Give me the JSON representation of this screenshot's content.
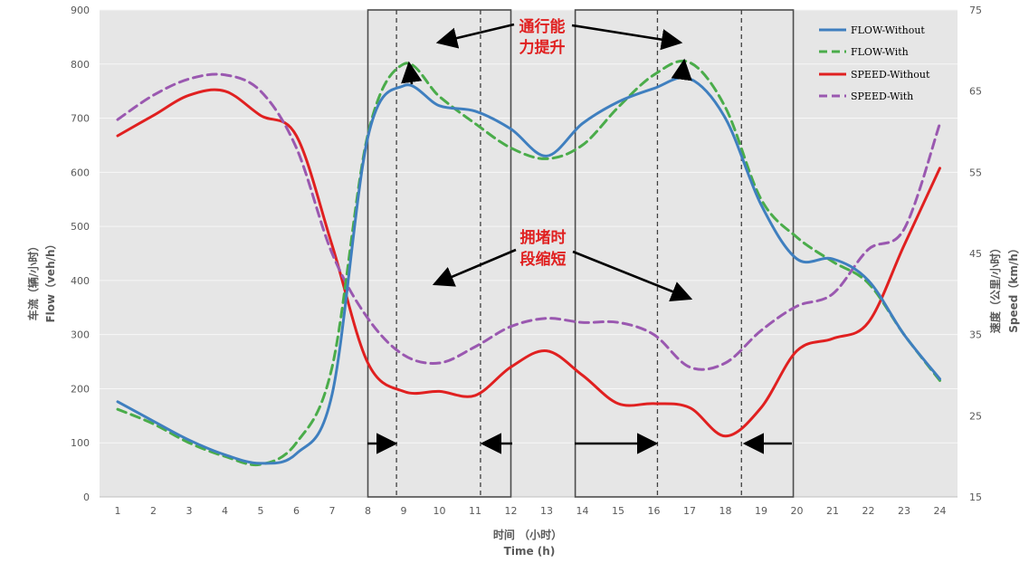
{
  "chart_data": {
    "type": "line",
    "x": [
      1,
      2,
      3,
      4,
      5,
      6,
      7,
      8,
      9,
      10,
      11,
      12,
      13,
      14,
      15,
      16,
      17,
      18,
      19,
      20,
      21,
      22,
      23,
      24
    ],
    "xlabel_cn": "时间 （小时）",
    "xlabel_en": "Time (h)",
    "ylabel_left_cn": "车流（辆/小时）",
    "ylabel_left_en": "Flow（veh/h）",
    "ylabel_right_cn": "速度（公里/小时）",
    "ylabel_right_en": "Speed（km/h）",
    "ylim_left": [
      0,
      900
    ],
    "ylim_right": [
      15,
      75
    ],
    "yticks_left": [
      0,
      100,
      200,
      300,
      400,
      500,
      600,
      700,
      800,
      900
    ],
    "yticks_right": [
      15,
      25,
      35,
      45,
      55,
      65,
      75
    ],
    "grid": true,
    "legend_position": "top-right",
    "series": [
      {
        "name": "FLOW-Without",
        "axis": "left",
        "style": "solid",
        "color": "#3f7fbf",
        "points": [
          [
            1,
            176
          ],
          [
            2,
            140
          ],
          [
            3,
            105
          ],
          [
            4,
            78
          ],
          [
            5,
            62
          ],
          [
            6,
            80
          ],
          [
            7,
            190
          ],
          [
            8,
            665
          ],
          [
            9,
            760
          ],
          [
            10,
            723
          ],
          [
            11,
            713
          ],
          [
            12,
            680
          ],
          [
            13,
            630
          ],
          [
            14,
            690
          ],
          [
            15,
            730
          ],
          [
            16,
            755
          ],
          [
            17,
            773
          ],
          [
            18,
            700
          ],
          [
            19,
            540
          ],
          [
            20,
            440
          ],
          [
            21,
            440
          ],
          [
            22,
            400
          ],
          [
            23,
            300
          ],
          [
            24,
            218
          ]
        ]
      },
      {
        "name": "FLOW-With",
        "axis": "left",
        "style": "dashed",
        "color": "#4aac4a",
        "points": [
          [
            1,
            162
          ],
          [
            2,
            135
          ],
          [
            3,
            100
          ],
          [
            4,
            75
          ],
          [
            5,
            60
          ],
          [
            6,
            100
          ],
          [
            7,
            240
          ],
          [
            8,
            670
          ],
          [
            9,
            800
          ],
          [
            10,
            740
          ],
          [
            11,
            690
          ],
          [
            12,
            645
          ],
          [
            13,
            625
          ],
          [
            14,
            650
          ],
          [
            15,
            720
          ],
          [
            16,
            780
          ],
          [
            17,
            803
          ],
          [
            18,
            720
          ],
          [
            19,
            550
          ],
          [
            20,
            480
          ],
          [
            21,
            435
          ],
          [
            22,
            395
          ],
          [
            23,
            300
          ],
          [
            24,
            215
          ]
        ]
      },
      {
        "name": "SPEED-Without",
        "axis": "right",
        "style": "solid",
        "color": "#e02020",
        "points": [
          [
            1,
            59.5
          ],
          [
            2,
            62
          ],
          [
            3,
            64.5
          ],
          [
            4,
            65
          ],
          [
            5,
            62
          ],
          [
            6,
            59.5
          ],
          [
            7,
            46
          ],
          [
            8,
            31.5
          ],
          [
            9,
            28
          ],
          [
            10,
            28
          ],
          [
            11,
            27.5
          ],
          [
            12,
            31
          ],
          [
            13,
            33
          ],
          [
            14,
            30
          ],
          [
            15,
            26.5
          ],
          [
            16,
            26.5
          ],
          [
            17,
            26
          ],
          [
            18,
            22.5
          ],
          [
            19,
            26
          ],
          [
            20,
            33
          ],
          [
            21,
            34.5
          ],
          [
            22,
            36.5
          ],
          [
            23,
            46
          ],
          [
            24,
            55.5
          ]
        ]
      },
      {
        "name": "SPEED-With",
        "axis": "right",
        "style": "dashed",
        "color": "#9a58b0",
        "points": [
          [
            1,
            61.5
          ],
          [
            2,
            64.5
          ],
          [
            3,
            66.5
          ],
          [
            4,
            67
          ],
          [
            5,
            65
          ],
          [
            6,
            58
          ],
          [
            7,
            45
          ],
          [
            8,
            37
          ],
          [
            9,
            32.5
          ],
          [
            10,
            31.5
          ],
          [
            11,
            33.5
          ],
          [
            12,
            36
          ],
          [
            13,
            37
          ],
          [
            14,
            36.5
          ],
          [
            15,
            36.5
          ],
          [
            16,
            35
          ],
          [
            17,
            31
          ],
          [
            18,
            31.5
          ],
          [
            19,
            35.5
          ],
          [
            20,
            38.5
          ],
          [
            21,
            40
          ],
          [
            22,
            45.5
          ],
          [
            23,
            48
          ],
          [
            24,
            61
          ]
        ]
      }
    ],
    "annotations": [
      {
        "text_line1": "通行能",
        "text_line2": "力提升",
        "color": "#e02020"
      },
      {
        "text_line1": "拥堵时",
        "text_line2": "段缩短",
        "color": "#e02020"
      }
    ],
    "boxes": [
      {
        "x_from": 8,
        "x_to": 12
      },
      {
        "x_from": 13.8,
        "x_to": 19.9
      }
    ],
    "dashed_verticals": [
      8.8,
      11.15,
      16.1,
      18.45
    ]
  }
}
